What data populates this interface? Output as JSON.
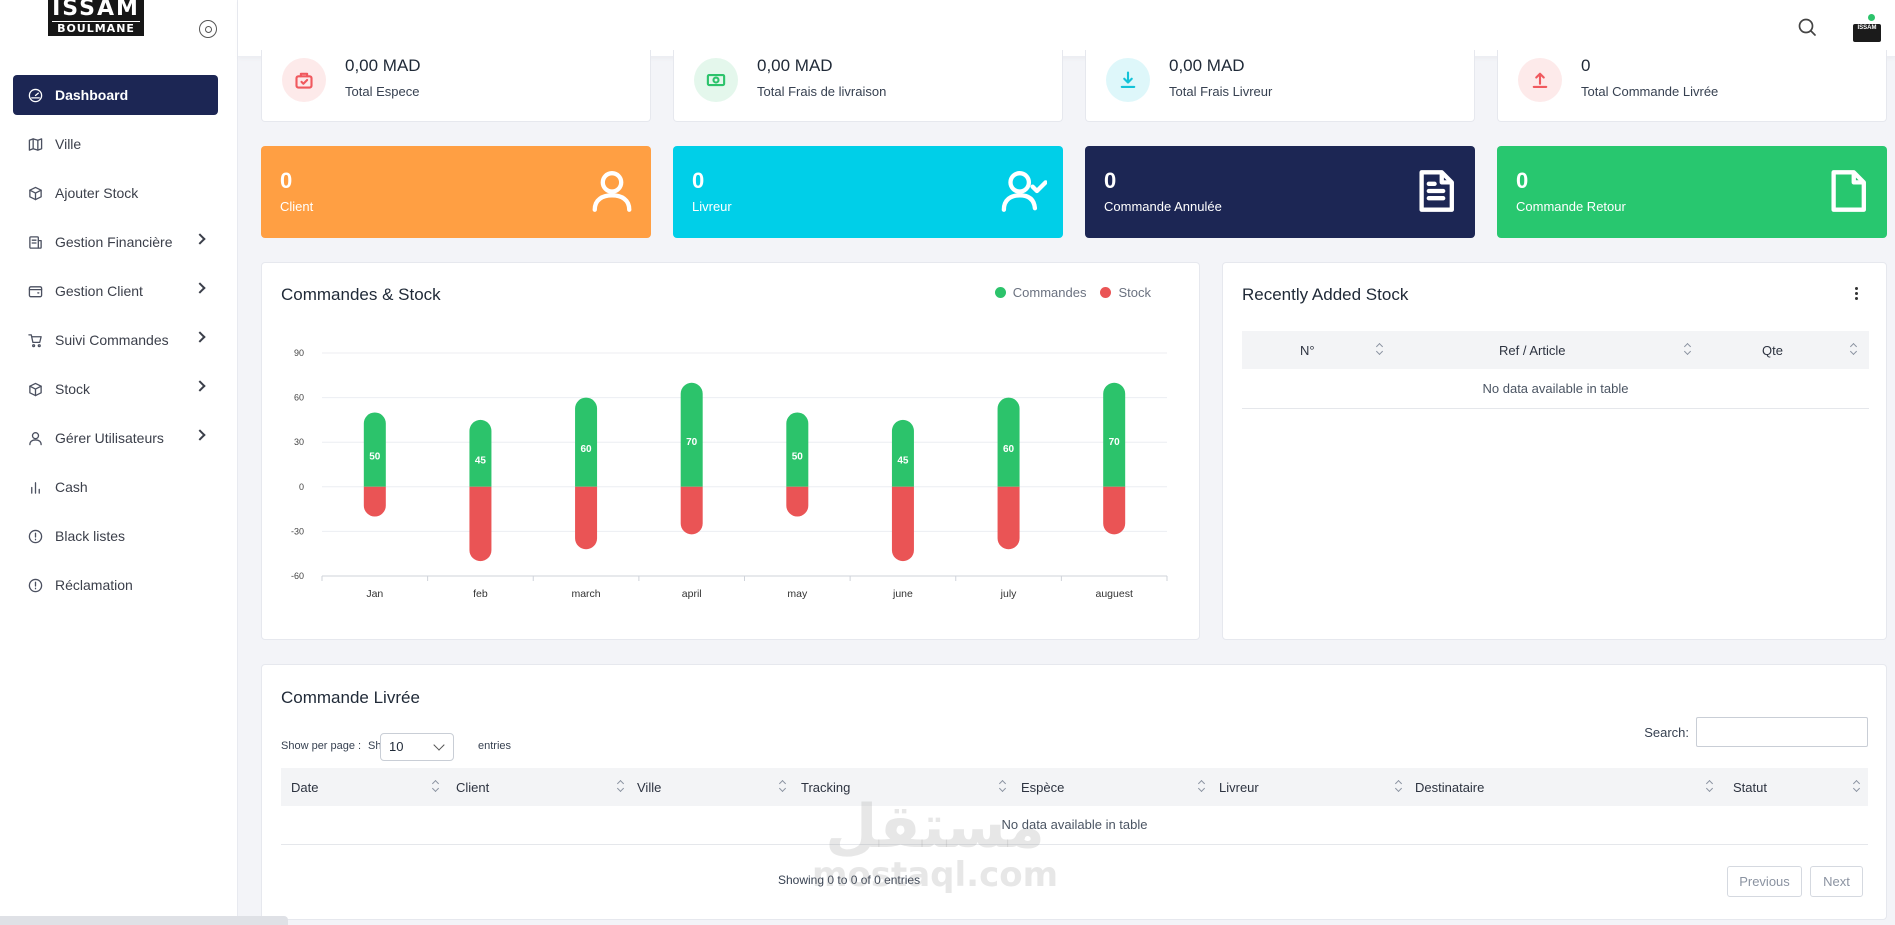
{
  "sidebar": {
    "logo": {
      "line1": "ISSAM",
      "line2": "BOULMANE"
    },
    "items": [
      {
        "label": "Dashboard",
        "icon": "gauge-icon",
        "active": true,
        "has_children": false
      },
      {
        "label": "Ville",
        "icon": "map-icon",
        "active": false,
        "has_children": false
      },
      {
        "label": "Ajouter Stock",
        "icon": "box-icon",
        "active": false,
        "has_children": false
      },
      {
        "label": "Gestion Financière",
        "icon": "receipt-icon",
        "active": false,
        "has_children": true
      },
      {
        "label": "Gestion Client",
        "icon": "wallet-icon",
        "active": false,
        "has_children": true
      },
      {
        "label": "Suivi Commandes",
        "icon": "cart-icon",
        "active": false,
        "has_children": true
      },
      {
        "label": "Stock",
        "icon": "box-icon",
        "active": false,
        "has_children": true
      },
      {
        "label": "Gérer Utilisateurs",
        "icon": "user-icon",
        "active": false,
        "has_children": true
      },
      {
        "label": "Cash",
        "icon": "bar-chart-icon",
        "active": false,
        "has_children": false
      },
      {
        "label": "Black listes",
        "icon": "alert-circle-icon",
        "active": false,
        "has_children": false
      },
      {
        "label": "Réclamation",
        "icon": "alert-circle-icon",
        "active": false,
        "has_children": false
      }
    ]
  },
  "stats": [
    {
      "value": "0,00 MAD",
      "label": "Total Espece",
      "icon": "briefcase-icon",
      "color": "#f0595e",
      "bg": "#fdeaea"
    },
    {
      "value": "0,00 MAD",
      "label": "Total Frais de livraison",
      "icon": "money-icon",
      "color": "#2cc36b",
      "bg": "#e4f7ec"
    },
    {
      "value": "0,00 MAD",
      "label": "Total Frais Livreur",
      "icon": "download-icon",
      "color": "#14c3d8",
      "bg": "#def7fa"
    },
    {
      "value": "0",
      "label": "Total Commande Livrée",
      "icon": "upload-icon",
      "color": "#f0595e",
      "bg": "#fdeaea"
    }
  ],
  "kpis": [
    {
      "value": "0",
      "label": "Client",
      "icon": "user-icon",
      "color": "#ff9f43"
    },
    {
      "value": "0",
      "label": "Livreur",
      "icon": "user-check-icon",
      "color": "#00cfe8"
    },
    {
      "value": "0",
      "label": "Commande Annulée",
      "icon": "file-text-icon",
      "color": "#1c2654"
    },
    {
      "value": "0",
      "label": "Commande Retour",
      "icon": "file-icon",
      "color": "#28c76f"
    }
  ],
  "chart_card": {
    "title": "Commandes & Stock"
  },
  "chart_data": {
    "type": "bar",
    "categories": [
      "Jan",
      "feb",
      "march",
      "april",
      "may",
      "june",
      "july",
      "auguest"
    ],
    "series": [
      {
        "name": "Commandes",
        "color": "#2cc36b",
        "values": [
          50,
          45,
          60,
          70,
          50,
          45,
          60,
          70
        ]
      },
      {
        "name": "Stock",
        "color": "#ea5455",
        "values": [
          -20,
          -50,
          -42,
          -32,
          -20,
          -50,
          -42,
          -32
        ]
      }
    ],
    "ylim": [
      -60,
      90
    ],
    "yticks": [
      90,
      60,
      30,
      0,
      -30,
      -60
    ],
    "grid": true,
    "legend": "top-right"
  },
  "recent_stock": {
    "title": "Recently Added Stock",
    "columns": [
      "N°",
      "Ref / Article",
      "Qte"
    ],
    "empty": "No data available in table"
  },
  "delivered": {
    "title": "Commande Livrée",
    "show_per_page": "Show per page :",
    "show": "Show",
    "entries_value": "10",
    "entries": "entries",
    "search_label": "Search:",
    "columns": [
      "Date",
      "Client",
      "Ville",
      "Tracking",
      "Espèce",
      "Livreur",
      "Destinataire",
      "Statut"
    ],
    "empty": "No data available in table",
    "showing": "Showing 0 to 0 of 0 entries",
    "previous": "Previous",
    "next": "Next"
  },
  "watermark": {
    "arabic": "مستقل",
    "latin": "mostaql.com"
  }
}
